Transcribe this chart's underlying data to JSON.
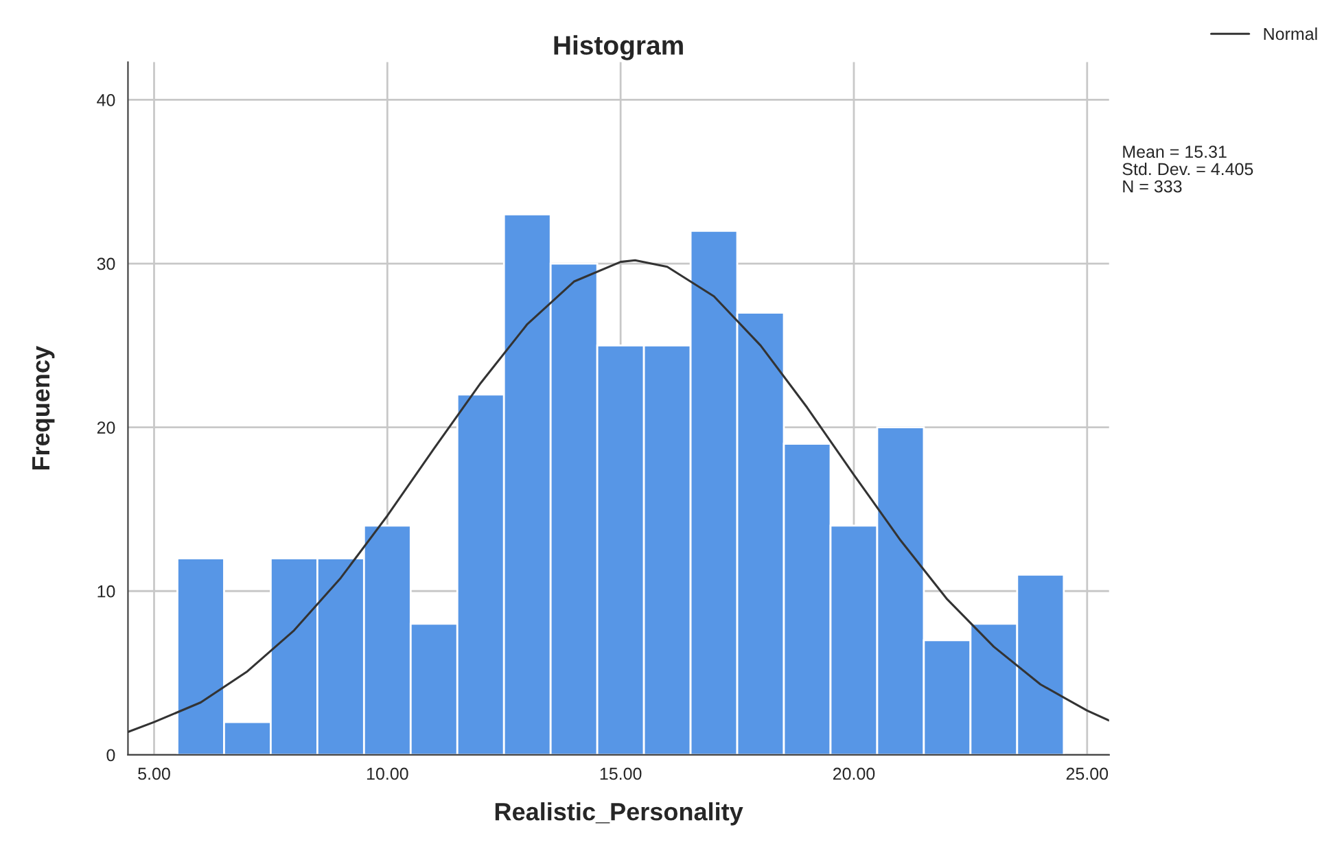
{
  "chart_data": {
    "type": "histogram",
    "title": "Histogram",
    "xlabel": "Realistic_Personality",
    "ylabel": "Frequency",
    "bins": [
      5.5,
      6.5,
      7.5,
      8.5,
      9.5,
      10.5,
      11.5,
      12.5,
      13.5,
      14.5,
      15.5,
      16.5,
      17.5,
      18.5,
      19.5,
      20.5,
      21.5,
      22.5,
      23.5,
      24.5
    ],
    "series": [
      {
        "color": "#5796e6",
        "values": [
          12,
          2,
          12,
          12,
          14,
          8,
          22,
          33,
          30,
          25,
          25,
          32,
          27,
          19,
          14,
          20,
          7,
          8,
          11
        ]
      },
      {
        "type": "line",
        "name": "Normal",
        "color": "#333333",
        "x": [
          4.44,
          5,
          6,
          7,
          8,
          9,
          10,
          11,
          12,
          13,
          14,
          15,
          15.31,
          16,
          17,
          18,
          19,
          20,
          21,
          22,
          23,
          24,
          25,
          25.47
        ],
        "values": [
          1.4,
          2.0,
          3.2,
          5.1,
          7.6,
          10.8,
          14.6,
          18.7,
          22.7,
          26.3,
          28.9,
          30.1,
          30.2,
          29.8,
          28.0,
          25.0,
          21.2,
          17.1,
          13.1,
          9.5,
          6.6,
          4.3,
          2.7,
          2.1
        ]
      }
    ],
    "annotations": [
      "Mean = 15.31",
      "Std. Dev. = 4.405",
      "N = 333"
    ],
    "xlim": [
      4.44,
      25.47
    ],
    "ylim": [
      0,
      42.3
    ],
    "xticks": [
      {
        "value": 5,
        "label": "5.00"
      },
      {
        "value": 10,
        "label": "10.00"
      },
      {
        "value": 15,
        "label": "15.00"
      },
      {
        "value": 20,
        "label": "20.00"
      },
      {
        "value": 25,
        "label": "25.00"
      }
    ],
    "yticks": [
      0,
      10,
      20,
      30,
      40
    ],
    "grid": true,
    "legend": "top right"
  }
}
